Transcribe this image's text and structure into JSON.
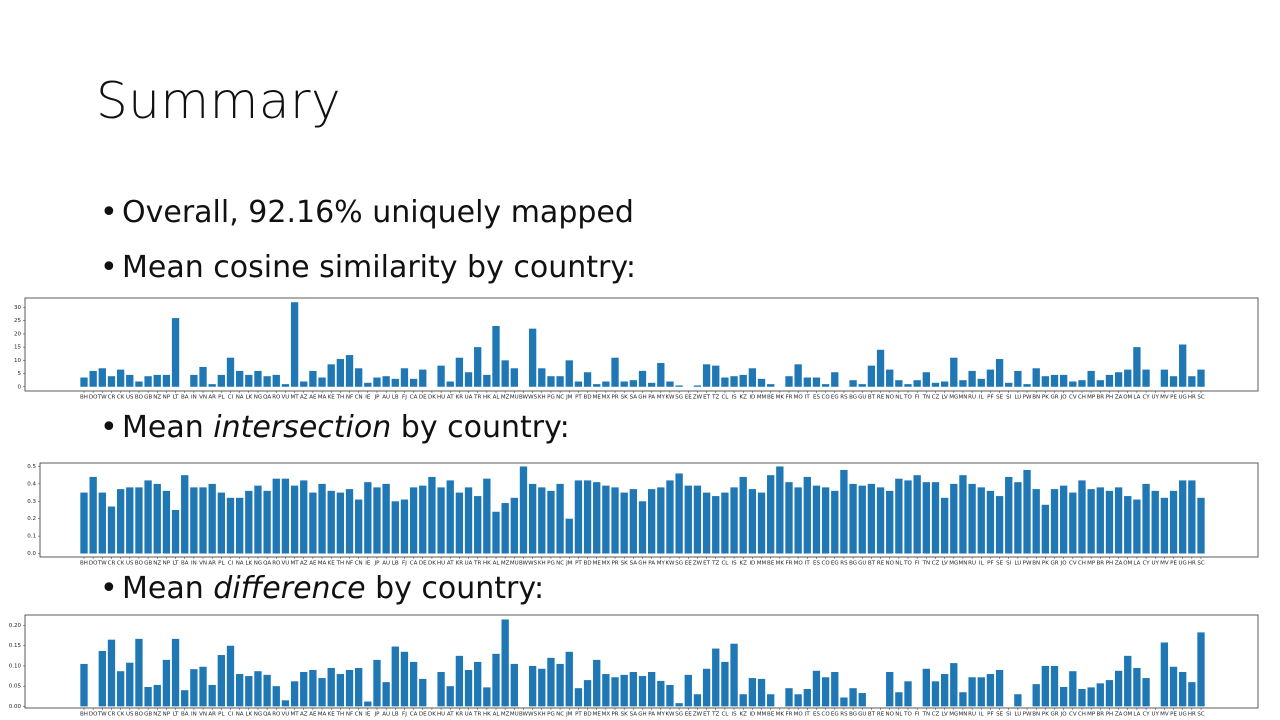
{
  "slide": {
    "title": "Summary",
    "bullets": [
      [
        "Overall, 92.16% uniquely mapped"
      ],
      [
        "Mean cosine similarity by country:"
      ],
      [
        "Mean ",
        "intersection",
        " by country:"
      ],
      [
        "Mean ",
        "difference",
        " by country:"
      ]
    ]
  },
  "chart_data": [
    {
      "type": "bar",
      "color": "#1f77b4",
      "categories": [
        "BH",
        "DO",
        "TW",
        "CR",
        "CK",
        "US",
        "BO",
        "GB",
        "NZ",
        "NP",
        "LT",
        "BA",
        "IN",
        "VN",
        "AR",
        "PL",
        "CI",
        "NA",
        "LK",
        "NG",
        "QA",
        "RO",
        "VU",
        "MT",
        "AZ",
        "AE",
        "MA",
        "KE",
        "TH",
        "NF",
        "CN",
        "IE",
        "JP",
        "AU",
        "LB",
        "FJ",
        "CA",
        "DE",
        "DK",
        "HU",
        "AT",
        "KR",
        "UA",
        "TR",
        "HK",
        "AL",
        "MZ",
        "MU",
        "BW",
        "WS",
        "KH",
        "PG",
        "NC",
        "JM",
        "PT",
        "BD",
        "ME",
        "MX",
        "PR",
        "SK",
        "SA",
        "GH",
        "PA",
        "MY",
        "KW",
        "SG",
        "EE",
        "ZW",
        "ET",
        "TZ",
        "CL",
        "IS",
        "KZ",
        "ID",
        "MM",
        "BE",
        "MK",
        "FR",
        "MO",
        "IT",
        "ES",
        "CO",
        "EG",
        "RS",
        "BG",
        "GU",
        "BT",
        "RE",
        "NO",
        "NL",
        "TO",
        "FI",
        "TN",
        "CZ",
        "LV",
        "MG",
        "MN",
        "RU",
        "IL",
        "PF",
        "SE",
        "SI",
        "LU",
        "PW",
        "BN",
        "PK",
        "GR",
        "JO",
        "CV",
        "CH",
        "MP",
        "BR",
        "PH",
        "ZA",
        "OM",
        "LA",
        "CY",
        "UY",
        "MV",
        "PE",
        "UG",
        "HR",
        "SC"
      ],
      "values": [
        3.5,
        6,
        7,
        4,
        6.5,
        4.5,
        2,
        4,
        4.5,
        4.5,
        26,
        0,
        4.5,
        7.5,
        1,
        4.5,
        11,
        6,
        4.5,
        6,
        4,
        4.5,
        1,
        32,
        2,
        6,
        3.5,
        8.5,
        10.5,
        12,
        7,
        1.5,
        3.5,
        4,
        3,
        7,
        3,
        6.5,
        0,
        8,
        2,
        11,
        5.5,
        15,
        4.5,
        23,
        10,
        7,
        0,
        22,
        7,
        4,
        4,
        10,
        2,
        5.5,
        1,
        2,
        11,
        2,
        2.5,
        6,
        1.5,
        9,
        2,
        0.5,
        0,
        0.5,
        8.5,
        8,
        3.5,
        4,
        4.5,
        7,
        3,
        1,
        0,
        4,
        8.5,
        3.5,
        3.5,
        1,
        5.5,
        0,
        2.5,
        1,
        8,
        14,
        6.5,
        2.5,
        1,
        2.5,
        5.5,
        1.5,
        2,
        11,
        2.5,
        6,
        3,
        6.5,
        10.5,
        1.5,
        6,
        1,
        7,
        4,
        4.5,
        4.5,
        2,
        2.5,
        6,
        2.5,
        4.5,
        5.5,
        6.5,
        15,
        6.5,
        0,
        6.5,
        4,
        16,
        4,
        6.5
      ],
      "ylim": [
        -1.6,
        33.6
      ],
      "yticks": [
        0,
        5,
        10,
        15,
        20,
        25,
        30
      ]
    },
    {
      "type": "bar",
      "color": "#1f77b4",
      "categories": [
        "BH",
        "DO",
        "TW",
        "CR",
        "CK",
        "US",
        "BO",
        "GB",
        "NZ",
        "NP",
        "LT",
        "BA",
        "IN",
        "VN",
        "AR",
        "PL",
        "CI",
        "NA",
        "LK",
        "NG",
        "QA",
        "RO",
        "VU",
        "MT",
        "AZ",
        "AE",
        "MA",
        "KE",
        "TH",
        "NF",
        "CN",
        "IE",
        "JP",
        "AU",
        "LB",
        "FJ",
        "CA",
        "DE",
        "DK",
        "HU",
        "AT",
        "KR",
        "UA",
        "TR",
        "HK",
        "AL",
        "MZ",
        "MU",
        "BW",
        "WS",
        "KH",
        "PG",
        "NC",
        "JM",
        "PT",
        "BD",
        "ME",
        "MX",
        "PR",
        "SK",
        "SA",
        "GH",
        "PA",
        "MY",
        "KW",
        "SG",
        "EE",
        "ZW",
        "ET",
        "TZ",
        "CL",
        "IS",
        "KZ",
        "ID",
        "MM",
        "BE",
        "MK",
        "FR",
        "MO",
        "IT",
        "ES",
        "CO",
        "EG",
        "RS",
        "BG",
        "GU",
        "BT",
        "RE",
        "NO",
        "NL",
        "TO",
        "FI",
        "TN",
        "CZ",
        "LV",
        "MG",
        "MN",
        "RU",
        "IL",
        "PF",
        "SE",
        "SI",
        "LU",
        "PW",
        "BN",
        "PK",
        "GR",
        "JO",
        "CV",
        "CH",
        "MP",
        "BR",
        "PH",
        "ZA",
        "OM",
        "LA",
        "CY",
        "UY",
        "MV",
        "PE",
        "UG",
        "HR",
        "SC"
      ],
      "values": [
        0.35,
        0.44,
        0.35,
        0.27,
        0.37,
        0.38,
        0.38,
        0.42,
        0.4,
        0.36,
        0.25,
        0.45,
        0.38,
        0.38,
        0.4,
        0.35,
        0.32,
        0.32,
        0.36,
        0.39,
        0.36,
        0.43,
        0.43,
        0.39,
        0.42,
        0.35,
        0.4,
        0.36,
        0.35,
        0.37,
        0.31,
        0.41,
        0.38,
        0.4,
        0.3,
        0.31,
        0.38,
        0.39,
        0.44,
        0.38,
        0.42,
        0.35,
        0.38,
        0.33,
        0.43,
        0.24,
        0.29,
        0.32,
        0.5,
        0.4,
        0.38,
        0.36,
        0.4,
        0.2,
        0.42,
        0.42,
        0.41,
        0.39,
        0.38,
        0.35,
        0.37,
        0.3,
        0.37,
        0.38,
        0.42,
        0.46,
        0.39,
        0.39,
        0.35,
        0.33,
        0.35,
        0.38,
        0.44,
        0.37,
        0.35,
        0.45,
        0.5,
        0.41,
        0.38,
        0.44,
        0.39,
        0.38,
        0.36,
        0.48,
        0.4,
        0.39,
        0.4,
        0.38,
        0.36,
        0.43,
        0.42,
        0.45,
        0.41,
        0.41,
        0.32,
        0.4,
        0.45,
        0.4,
        0.38,
        0.36,
        0.33,
        0.44,
        0.41,
        0.48,
        0.37,
        0.28,
        0.37,
        0.39,
        0.35,
        0.42,
        0.37,
        0.38,
        0.36,
        0.38,
        0.33,
        0.31,
        0.4,
        0.36,
        0.32,
        0.36,
        0.42,
        0.42,
        0.32
      ],
      "ylim": [
        -0.02,
        0.52
      ],
      "yticks": [
        {
          "value": 0,
          "label": "0.0"
        },
        {
          "value": 0.1,
          "label": "0.1"
        },
        {
          "value": 0.2,
          "label": "0.2"
        },
        {
          "value": 0.3,
          "label": "0.3"
        },
        {
          "value": 0.4,
          "label": "0.4"
        },
        {
          "value": 0.5,
          "label": "0.5"
        }
      ]
    },
    {
      "type": "bar",
      "color": "#1f77b4",
      "categories": [
        "BH",
        "DO",
        "TW",
        "CR",
        "CK",
        "US",
        "BO",
        "GB",
        "NZ",
        "NP",
        "LT",
        "BA",
        "IN",
        "VN",
        "AR",
        "PL",
        "CI",
        "NA",
        "LK",
        "NG",
        "QA",
        "RO",
        "VU",
        "MT",
        "AZ",
        "AE",
        "MA",
        "KE",
        "TH",
        "NF",
        "CN",
        "IE",
        "JP",
        "AU",
        "LB",
        "FJ",
        "CA",
        "DE",
        "DK",
        "HU",
        "AT",
        "KR",
        "UA",
        "TR",
        "HK",
        "AL",
        "MZ",
        "MU",
        "BW",
        "WS",
        "KH",
        "PG",
        "NC",
        "JM",
        "PT",
        "BD",
        "ME",
        "MX",
        "PR",
        "SK",
        "SA",
        "GH",
        "PA",
        "MY",
        "KW",
        "SG",
        "EE",
        "ZW",
        "ET",
        "TZ",
        "CL",
        "IS",
        "KZ",
        "ID",
        "MM",
        "BE",
        "MK",
        "FR",
        "MO",
        "IT",
        "ES",
        "CO",
        "EG",
        "RS",
        "BG",
        "GU",
        "BT",
        "RE",
        "NO",
        "NL",
        "TO",
        "FI",
        "TN",
        "CZ",
        "LV",
        "MG",
        "MN",
        "RU",
        "IL",
        "PF",
        "SE",
        "SI",
        "LU",
        "PW",
        "BN",
        "PK",
        "GR",
        "JO",
        "CV",
        "CH",
        "MP",
        "BR",
        "PH",
        "ZA",
        "OM",
        "LA",
        "CY",
        "UY",
        "MV",
        "PE",
        "UG",
        "HR",
        "SC"
      ],
      "values": [
        0.105,
        0,
        0.137,
        0.165,
        0.087,
        0.108,
        0.167,
        0.048,
        0.053,
        0.115,
        0.167,
        0.04,
        0.092,
        0.098,
        0.053,
        0.127,
        0.15,
        0.08,
        0.075,
        0.087,
        0.078,
        0.05,
        0.015,
        0.062,
        0.085,
        0.09,
        0.07,
        0.095,
        0.08,
        0.09,
        0.095,
        0.012,
        0.115,
        0.06,
        0.148,
        0.135,
        0.11,
        0.068,
        0,
        0.085,
        0.05,
        0.125,
        0.09,
        0.11,
        0.047,
        0.13,
        0.215,
        0.105,
        0,
        0.1,
        0.093,
        0.12,
        0.105,
        0.135,
        0.045,
        0.065,
        0.115,
        0.08,
        0.072,
        0.078,
        0.085,
        0.075,
        0.085,
        0.063,
        0.053,
        0.008,
        0.078,
        0.03,
        0.093,
        0.143,
        0.11,
        0.155,
        0.03,
        0.07,
        0.068,
        0.03,
        0,
        0.045,
        0.03,
        0.043,
        0.088,
        0.072,
        0.085,
        0.022,
        0.045,
        0.033,
        0,
        0,
        0.085,
        0.035,
        0.062,
        0,
        0.093,
        0.062,
        0.08,
        0.107,
        0.035,
        0.072,
        0.072,
        0.08,
        0.09,
        0,
        0.03,
        0,
        0.055,
        0.1,
        0.1,
        0.048,
        0.087,
        0.043,
        0.047,
        0.057,
        0.065,
        0.088,
        0.125,
        0.095,
        0.07,
        0,
        0.158,
        0.098,
        0.085,
        0.06,
        0.183
      ],
      "ylim": [
        -0.004,
        0.226
      ],
      "yticks": [
        {
          "value": 0,
          "label": "0.00"
        },
        {
          "value": 0.05,
          "label": "0.05"
        },
        {
          "value": 0.1,
          "label": "0.10"
        },
        {
          "value": 0.15,
          "label": "0.15"
        },
        {
          "value": 0.2,
          "label": "0.20"
        }
      ]
    }
  ]
}
